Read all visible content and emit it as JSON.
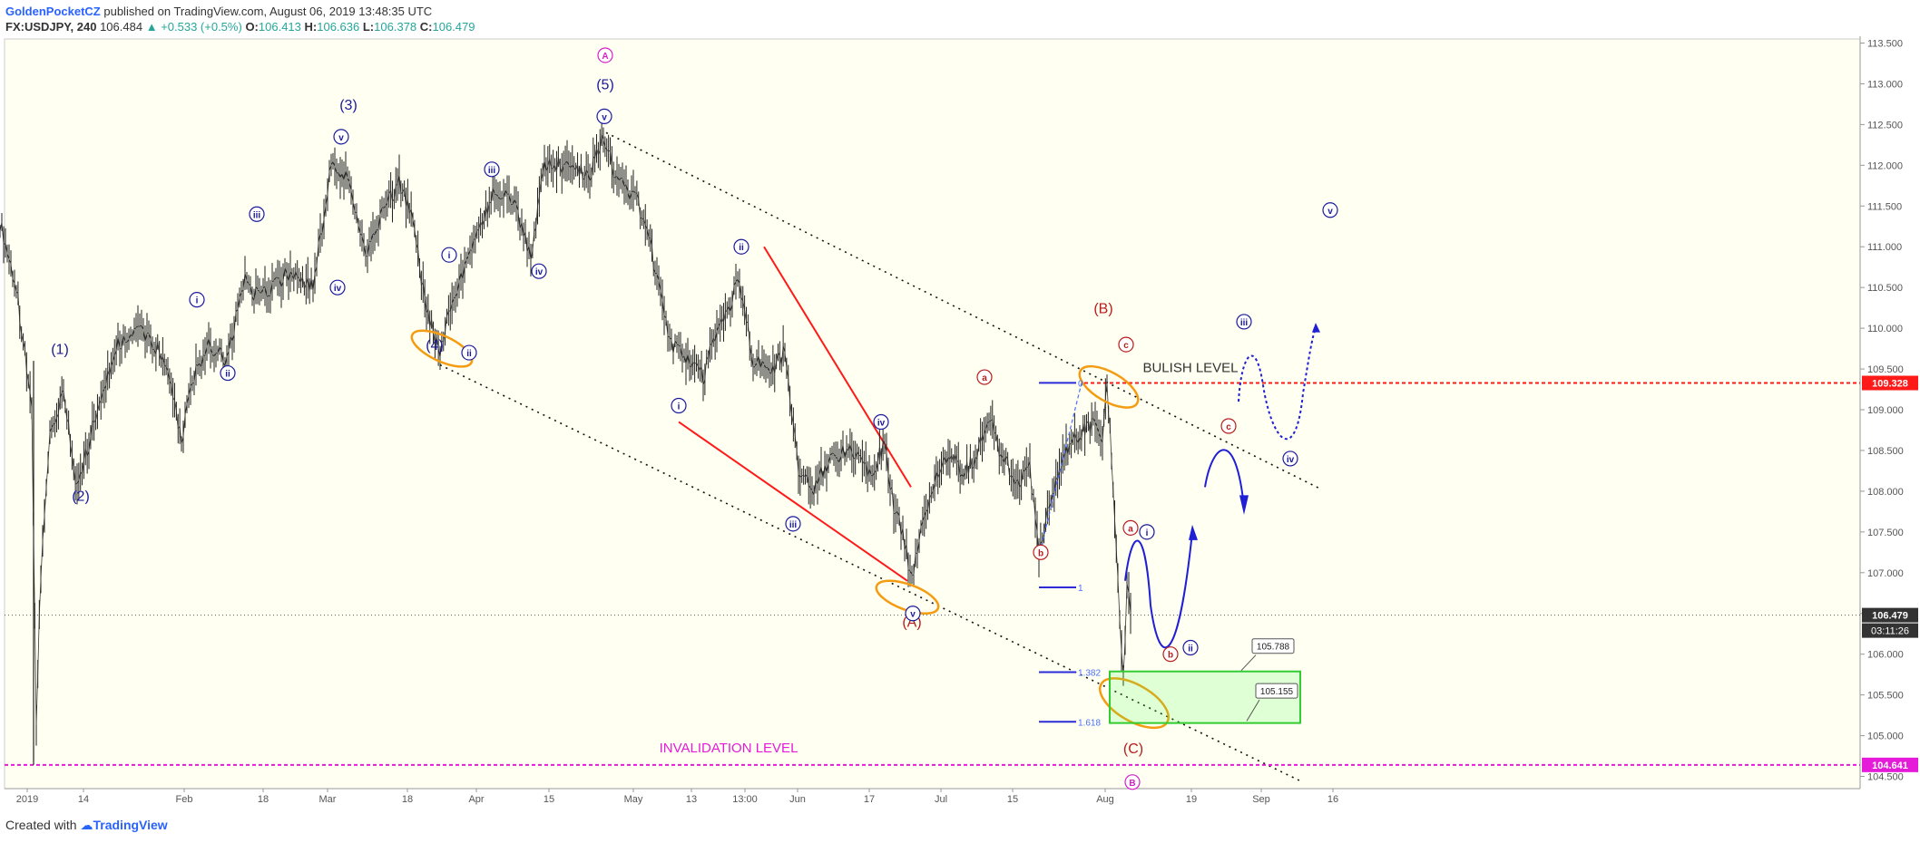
{
  "header": {
    "author": "GoldenPocketCZ",
    "published": " published on TradingView.com, August 06, 2019 13:48:35 UTC",
    "symbol": "FX:USDJPY, 240",
    "last": "106.484",
    "change": "+0.533 (+0.5%)",
    "o_label": "O:",
    "o_value": "106.413",
    "h_label": "H:",
    "h_value": "106.636",
    "l_label": "L:",
    "l_value": "106.378",
    "c_label": "C:",
    "c_value": "106.479"
  },
  "footer": {
    "created_with": "Created with",
    "brand": "TradingView"
  },
  "chart_data": {
    "type": "candlestick",
    "symbol": "FX:USDJPY",
    "interval": "240",
    "ylim": [
      104.35,
      113.55
    ],
    "y_ticks": [
      "104.500",
      "105.000",
      "105.500",
      "106.000",
      "106.500",
      "107.000",
      "107.500",
      "108.000",
      "108.500",
      "109.000",
      "109.500",
      "110.000",
      "110.500",
      "111.000",
      "111.500",
      "112.000",
      "112.500",
      "113.000",
      "113.500"
    ],
    "x_ticks": [
      "2019",
      "14",
      "Feb",
      "18",
      "Mar",
      "18",
      "Apr",
      "15",
      "May",
      "13",
      "13:00",
      "Jun",
      "17",
      "Jul",
      "15",
      "Aug",
      "19",
      "Sep",
      "16"
    ],
    "price_path": [
      [
        0,
        111.3
      ],
      [
        18,
        110.5
      ],
      [
        35,
        109.0
      ],
      [
        40,
        105.2
      ],
      [
        45,
        107.0
      ],
      [
        55,
        108.7
      ],
      [
        70,
        109.2
      ],
      [
        85,
        108.0
      ],
      [
        98,
        108.6
      ],
      [
        115,
        109.3
      ],
      [
        130,
        109.8
      ],
      [
        150,
        110.0
      ],
      [
        170,
        109.8
      ],
      [
        185,
        109.5
      ],
      [
        200,
        108.6
      ],
      [
        210,
        109.3
      ],
      [
        230,
        109.8
      ],
      [
        250,
        109.6
      ],
      [
        270,
        110.6
      ],
      [
        280,
        110.4
      ],
      [
        300,
        110.5
      ],
      [
        320,
        110.7
      ],
      [
        345,
        110.5
      ],
      [
        365,
        112.0
      ],
      [
        385,
        111.8
      ],
      [
        405,
        110.9
      ],
      [
        425,
        111.5
      ],
      [
        440,
        111.8
      ],
      [
        455,
        111.3
      ],
      [
        470,
        110.2
      ],
      [
        485,
        109.7
      ],
      [
        500,
        110.4
      ],
      [
        520,
        111.0
      ],
      [
        545,
        111.7
      ],
      [
        565,
        111.6
      ],
      [
        585,
        110.9
      ],
      [
        600,
        112.0
      ],
      [
        625,
        112.0
      ],
      [
        650,
        111.9
      ],
      [
        665,
        112.4
      ],
      [
        680,
        111.8
      ],
      [
        700,
        111.6
      ],
      [
        715,
        111.2
      ],
      [
        722,
        110.7
      ],
      [
        740,
        109.8
      ],
      [
        760,
        109.6
      ],
      [
        775,
        109.4
      ],
      [
        790,
        110.0
      ],
      [
        805,
        110.3
      ],
      [
        815,
        110.6
      ],
      [
        830,
        109.6
      ],
      [
        850,
        109.5
      ],
      [
        865,
        109.7
      ],
      [
        880,
        108.3
      ],
      [
        895,
        108.0
      ],
      [
        915,
        108.4
      ],
      [
        935,
        108.5
      ],
      [
        960,
        108.2
      ],
      [
        975,
        108.6
      ],
      [
        985,
        107.8
      ],
      [
        995,
        107.5
      ],
      [
        1005,
        106.9
      ],
      [
        1015,
        107.5
      ],
      [
        1030,
        108.1
      ],
      [
        1045,
        108.5
      ],
      [
        1060,
        108.2
      ],
      [
        1075,
        108.4
      ],
      [
        1090,
        108.9
      ],
      [
        1105,
        108.4
      ],
      [
        1120,
        108.1
      ],
      [
        1135,
        108.3
      ],
      [
        1145,
        107.2
      ],
      [
        1160,
        108.0
      ],
      [
        1175,
        108.5
      ],
      [
        1190,
        108.7
      ],
      [
        1205,
        108.8
      ],
      [
        1215,
        108.6
      ],
      [
        1220,
        109.3
      ],
      [
        1225,
        108.4
      ],
      [
        1232,
        106.9
      ],
      [
        1238,
        105.7
      ],
      [
        1242,
        106.8
      ],
      [
        1246,
        106.5
      ]
    ],
    "wave_labels": [
      {
        "text": "(1)",
        "x": 66,
        "y": 109.75,
        "color": "#1a1a9a"
      },
      {
        "text": "(2)",
        "x": 89,
        "y": 107.95,
        "color": "#1a1a9a"
      },
      {
        "text": "(3)",
        "x": 384,
        "y": 112.75,
        "color": "#1a1a9a"
      },
      {
        "text": "(4)",
        "x": 479,
        "y": 109.8,
        "color": "#1a1a9a"
      },
      {
        "text": "(5)",
        "x": 667,
        "y": 113.0,
        "color": "#1a1a9a"
      },
      {
        "text": "(A)",
        "x": 1005,
        "y": 106.4,
        "color": "#b71c1c"
      },
      {
        "text": "(B)",
        "x": 1216,
        "y": 110.25,
        "color": "#b71c1c"
      },
      {
        "text": "(C)",
        "x": 1249,
        "y": 104.85,
        "color": "#b71c1c"
      }
    ],
    "circle_labels": [
      {
        "text": "A",
        "x": 667,
        "y": 113.35,
        "color": "#d61fc7"
      },
      {
        "text": "B",
        "x": 1248,
        "y": 104.43,
        "color": "#d61fc7"
      },
      {
        "text": "v",
        "x": 376,
        "y": 112.35,
        "color": "#1a1a9a"
      },
      {
        "text": "iii",
        "x": 283,
        "y": 111.4,
        "color": "#1a1a9a"
      },
      {
        "text": "i",
        "x": 217,
        "y": 110.35,
        "color": "#1a1a9a"
      },
      {
        "text": "ii",
        "x": 251,
        "y": 109.45,
        "color": "#1a1a9a"
      },
      {
        "text": "iv",
        "x": 372,
        "y": 110.5,
        "color": "#1a1a9a"
      },
      {
        "text": "i",
        "x": 495,
        "y": 110.9,
        "color": "#1a1a9a"
      },
      {
        "text": "ii",
        "x": 517,
        "y": 109.7,
        "color": "#1a1a9a"
      },
      {
        "text": "iii",
        "x": 542,
        "y": 111.95,
        "color": "#1a1a9a"
      },
      {
        "text": "iv",
        "x": 594,
        "y": 110.7,
        "color": "#1a1a9a"
      },
      {
        "text": "v",
        "x": 666,
        "y": 112.6,
        "color": "#1a1a9a"
      },
      {
        "text": "ii",
        "x": 817,
        "y": 111.0,
        "color": "#1a1a9a"
      },
      {
        "text": "i",
        "x": 748,
        "y": 109.05,
        "color": "#1a1a9a"
      },
      {
        "text": "iii",
        "x": 874,
        "y": 107.6,
        "color": "#1a1a9a"
      },
      {
        "text": "iv",
        "x": 971,
        "y": 108.85,
        "color": "#1a1a9a"
      },
      {
        "text": "v",
        "x": 1006,
        "y": 106.5,
        "color": "#1a1a9a"
      },
      {
        "text": "a",
        "x": 1085,
        "y": 109.4,
        "color": "#b71c1c"
      },
      {
        "text": "b",
        "x": 1147,
        "y": 107.25,
        "color": "#b71c1c"
      },
      {
        "text": "c",
        "x": 1241,
        "y": 109.8,
        "color": "#b71c1c"
      },
      {
        "text": "a",
        "x": 1246,
        "y": 107.55,
        "color": "#b71c1c"
      },
      {
        "text": "i",
        "x": 1264,
        "y": 107.5,
        "color": "#1a1a9a"
      },
      {
        "text": "b",
        "x": 1290,
        "y": 106.0,
        "color": "#b71c1c"
      },
      {
        "text": "ii",
        "x": 1312,
        "y": 106.08,
        "color": "#1a1a9a"
      },
      {
        "text": "c",
        "x": 1354,
        "y": 108.8,
        "color": "#b71c1c"
      },
      {
        "text": "iii",
        "x": 1371,
        "y": 110.08,
        "color": "#1a1a9a"
      },
      {
        "text": "iv",
        "x": 1422,
        "y": 108.4,
        "color": "#1a1a9a"
      },
      {
        "text": "v",
        "x": 1466,
        "y": 111.45,
        "color": "#1a1a9a"
      }
    ],
    "levels": [
      {
        "name": "bullish",
        "value": 109.328,
        "label": "109.328",
        "text": "BULISH LEVEL",
        "color": "#ff1a1a"
      },
      {
        "name": "invalidation",
        "value": 104.641,
        "label": "104.641",
        "text": "INVALIDATION LEVEL",
        "color": "#e51bd9"
      },
      {
        "name": "last",
        "value": 106.479,
        "label": "106.479",
        "timer": "03:11:26",
        "color": "#333333"
      }
    ],
    "fib": [
      {
        "ratio": "0",
        "value": 109.33
      },
      {
        "ratio": "1",
        "value": 106.82
      },
      {
        "ratio": "1.382",
        "value": 105.78
      },
      {
        "ratio": "1.618",
        "value": 105.17
      }
    ],
    "target_zone": {
      "top": 105.788,
      "bottom": 105.155,
      "top_label": "105.788",
      "bottom_label": "105.155"
    }
  }
}
